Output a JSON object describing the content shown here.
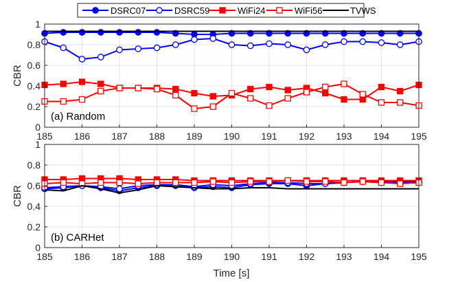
{
  "legend": [
    {
      "name": "DSRC07",
      "color": "#0000ff",
      "marker": "filled-circle"
    },
    {
      "name": "DSRC59",
      "color": "#0000ff",
      "marker": "open-circle"
    },
    {
      "name": "WiFi24",
      "color": "#ff0000",
      "marker": "filled-square"
    },
    {
      "name": "WiFi56",
      "color": "#ff0000",
      "marker": "open-square"
    },
    {
      "name": "TVWS",
      "color": "#000000",
      "marker": "none"
    }
  ],
  "chart_data": [
    {
      "type": "line",
      "annotation": "(a) Random",
      "xlabel": "",
      "ylabel": "CBR",
      "xlim": [
        185,
        195
      ],
      "ylim": [
        0,
        1
      ],
      "xticks": [
        "185",
        "186",
        "187",
        "188",
        "189",
        "190",
        "191",
        "192",
        "193",
        "194",
        "195"
      ],
      "yticks": [
        "0",
        "0.2",
        "0.4",
        "0.6",
        "0.8",
        "1"
      ],
      "grid": true,
      "x": [
        185,
        185.5,
        186,
        186.5,
        187,
        187.5,
        188,
        188.5,
        189,
        189.5,
        190,
        190.5,
        191,
        191.5,
        192,
        192.5,
        193,
        193.5,
        194,
        194.5,
        195
      ],
      "series": [
        {
          "name": "DSRC07",
          "values": [
            0.91,
            0.92,
            0.92,
            0.92,
            0.92,
            0.92,
            0.92,
            0.91,
            0.9,
            0.9,
            0.91,
            0.91,
            0.91,
            0.91,
            0.91,
            0.91,
            0.91,
            0.91,
            0.91,
            0.91,
            0.91
          ]
        },
        {
          "name": "DSRC59",
          "values": [
            0.83,
            0.77,
            0.66,
            0.68,
            0.75,
            0.76,
            0.77,
            0.8,
            0.85,
            0.86,
            0.8,
            0.79,
            0.81,
            0.8,
            0.75,
            0.8,
            0.83,
            0.83,
            0.82,
            0.8,
            0.83
          ]
        },
        {
          "name": "WiFi24",
          "values": [
            0.41,
            0.42,
            0.44,
            0.42,
            0.38,
            0.38,
            0.38,
            0.37,
            0.33,
            0.3,
            0.31,
            0.37,
            0.39,
            0.36,
            0.38,
            0.33,
            0.27,
            0.27,
            0.39,
            0.35,
            0.41
          ]
        },
        {
          "name": "WiFi56",
          "values": [
            0.25,
            0.25,
            0.27,
            0.35,
            0.38,
            0.38,
            0.37,
            0.31,
            0.18,
            0.2,
            0.33,
            0.28,
            0.21,
            0.28,
            0.34,
            0.39,
            0.42,
            0.32,
            0.24,
            0.24,
            0.21
          ]
        },
        {
          "name": "TVWS",
          "values": [
            0.93,
            0.93,
            0.93,
            0.93,
            0.93,
            0.93,
            0.93,
            0.93,
            0.93,
            0.93,
            0.93,
            0.93,
            0.93,
            0.93,
            0.93,
            0.93,
            0.93,
            0.93,
            0.93,
            0.93,
            0.93
          ]
        }
      ]
    },
    {
      "type": "line",
      "annotation": "(b) CARHet",
      "xlabel": "Time [s]",
      "ylabel": "CBR",
      "xlim": [
        185,
        195
      ],
      "ylim": [
        0,
        1
      ],
      "xticks": [
        "185",
        "186",
        "187",
        "188",
        "189",
        "190",
        "191",
        "192",
        "193",
        "194",
        "195"
      ],
      "yticks": [
        "0",
        "0.2",
        "0.4",
        "0.6",
        "0.8",
        "1"
      ],
      "grid": true,
      "x": [
        185,
        185.5,
        186,
        186.5,
        187,
        187.5,
        188,
        188.5,
        189,
        189.5,
        190,
        190.5,
        191,
        191.5,
        192,
        192.5,
        193,
        193.5,
        194,
        194.5,
        195
      ],
      "series": [
        {
          "name": "DSRC07",
          "values": [
            0.57,
            0.58,
            0.6,
            0.58,
            0.55,
            0.58,
            0.6,
            0.6,
            0.58,
            0.59,
            0.58,
            0.61,
            0.62,
            0.62,
            0.6,
            0.62,
            0.63,
            0.64,
            0.63,
            0.64,
            0.64
          ]
        },
        {
          "name": "DSRC59",
          "values": [
            0.58,
            0.59,
            0.6,
            0.59,
            0.57,
            0.6,
            0.61,
            0.61,
            0.59,
            0.61,
            0.6,
            0.62,
            0.63,
            0.63,
            0.62,
            0.62,
            0.63,
            0.64,
            0.64,
            0.63,
            0.64
          ]
        },
        {
          "name": "WiFi24",
          "values": [
            0.66,
            0.66,
            0.67,
            0.67,
            0.67,
            0.66,
            0.66,
            0.66,
            0.65,
            0.65,
            0.65,
            0.65,
            0.65,
            0.65,
            0.65,
            0.65,
            0.65,
            0.65,
            0.65,
            0.65,
            0.65
          ]
        },
        {
          "name": "WiFi56",
          "values": [
            0.62,
            0.63,
            0.62,
            0.63,
            0.63,
            0.62,
            0.63,
            0.63,
            0.63,
            0.64,
            0.63,
            0.64,
            0.64,
            0.65,
            0.64,
            0.64,
            0.63,
            0.64,
            0.63,
            0.62,
            0.63
          ]
        },
        {
          "name": "TVWS",
          "values": [
            0.56,
            0.55,
            0.6,
            0.57,
            0.53,
            0.56,
            0.6,
            0.59,
            0.58,
            0.57,
            0.57,
            0.58,
            0.58,
            0.57,
            0.57,
            0.57,
            0.57,
            0.57,
            0.57,
            0.57,
            0.57
          ]
        }
      ]
    }
  ]
}
